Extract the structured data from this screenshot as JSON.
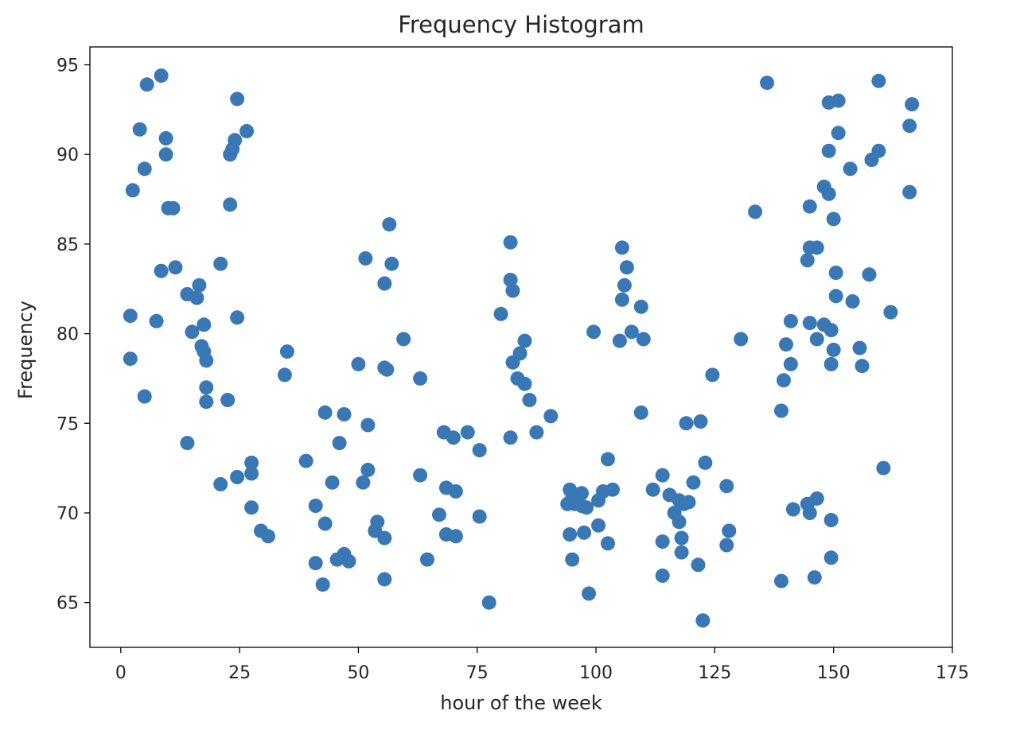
{
  "chart_data": {
    "type": "scatter",
    "title": "Frequency Histogram",
    "xlabel": "hour of the week",
    "ylabel": "Frequency",
    "xlim": [
      -6.5,
      175
    ],
    "ylim": [
      62.5,
      96
    ],
    "xticks": [
      0,
      25,
      50,
      75,
      100,
      125,
      150,
      175
    ],
    "yticks": [
      65,
      70,
      75,
      80,
      85,
      90,
      95
    ],
    "grid": false,
    "legend": "none",
    "marker_color": "#3a78b5",
    "series": [
      {
        "points": [
          [
            2,
            81
          ],
          [
            2,
            78.6
          ],
          [
            2.5,
            88
          ],
          [
            4,
            91.4
          ],
          [
            5,
            76.5
          ],
          [
            5,
            89.2
          ],
          [
            5.5,
            93.9
          ],
          [
            7.5,
            80.7
          ],
          [
            8.5,
            94.4
          ],
          [
            8.5,
            83.5
          ],
          [
            9.5,
            90
          ],
          [
            9.5,
            90.9
          ],
          [
            10,
            87
          ],
          [
            11,
            87
          ],
          [
            11.5,
            83.7
          ],
          [
            14,
            73.9
          ],
          [
            14,
            82.2
          ],
          [
            15,
            80.1
          ],
          [
            16,
            82
          ],
          [
            16.5,
            82.7
          ],
          [
            17,
            79.3
          ],
          [
            17.5,
            80.5
          ],
          [
            17.5,
            79
          ],
          [
            18,
            78.5
          ],
          [
            18,
            77
          ],
          [
            18,
            76.2
          ],
          [
            21,
            83.9
          ],
          [
            21,
            71.6
          ],
          [
            22.5,
            76.3
          ],
          [
            23,
            87.2
          ],
          [
            23,
            90
          ],
          [
            23.5,
            90.3
          ],
          [
            24,
            90.8
          ],
          [
            24.5,
            93.1
          ],
          [
            24.5,
            80.9
          ],
          [
            24.5,
            72
          ],
          [
            26.5,
            91.3
          ],
          [
            27.5,
            72.8
          ],
          [
            27.5,
            72.2
          ],
          [
            27.5,
            70.3
          ],
          [
            29.5,
            69
          ],
          [
            31,
            68.7
          ],
          [
            34.5,
            77.7
          ],
          [
            35,
            79
          ],
          [
            39,
            72.9
          ],
          [
            41,
            67.2
          ],
          [
            41,
            70.4
          ],
          [
            42.5,
            66
          ],
          [
            43,
            69.4
          ],
          [
            43,
            75.6
          ],
          [
            44.5,
            71.7
          ],
          [
            45.5,
            67.4
          ],
          [
            46,
            73.9
          ],
          [
            47,
            75.5
          ],
          [
            47,
            67.7
          ],
          [
            48,
            67.3
          ],
          [
            50,
            78.3
          ],
          [
            51,
            71.7
          ],
          [
            51.5,
            84.2
          ],
          [
            52,
            74.9
          ],
          [
            52,
            72.4
          ],
          [
            53.5,
            69
          ],
          [
            54,
            69.5
          ],
          [
            55.5,
            68.6
          ],
          [
            55.5,
            66.3
          ],
          [
            55.5,
            78.1
          ],
          [
            55.5,
            82.8
          ],
          [
            56,
            78
          ],
          [
            56.5,
            86.1
          ],
          [
            57,
            83.9
          ],
          [
            59.5,
            79.7
          ],
          [
            63,
            77.5
          ],
          [
            63,
            72.1
          ],
          [
            64.5,
            67.4
          ],
          [
            67,
            69.9
          ],
          [
            68,
            74.5
          ],
          [
            68.5,
            71.4
          ],
          [
            68.5,
            68.8
          ],
          [
            70,
            74.2
          ],
          [
            70.5,
            68.7
          ],
          [
            70.5,
            71.2
          ],
          [
            73,
            74.5
          ],
          [
            75.5,
            69.8
          ],
          [
            75.5,
            73.5
          ],
          [
            77.5,
            65
          ],
          [
            80,
            81.1
          ],
          [
            82,
            74.2
          ],
          [
            82,
            85.1
          ],
          [
            82,
            83
          ],
          [
            82.5,
            78.4
          ],
          [
            82.5,
            82.4
          ],
          [
            83.5,
            77.5
          ],
          [
            84,
            78.9
          ],
          [
            85,
            77.2
          ],
          [
            85,
            79.6
          ],
          [
            86,
            76.3
          ],
          [
            87.5,
            74.5
          ],
          [
            90.5,
            75.4
          ],
          [
            94,
            70.5
          ],
          [
            94.5,
            71.3
          ],
          [
            94.5,
            68.8
          ],
          [
            95,
            70.8
          ],
          [
            95,
            67.4
          ],
          [
            95.5,
            70.5
          ],
          [
            96.5,
            71
          ],
          [
            97,
            70.4
          ],
          [
            97,
            71.1
          ],
          [
            97.5,
            68.9
          ],
          [
            98,
            70.3
          ],
          [
            98.5,
            65.5
          ],
          [
            99.5,
            80.1
          ],
          [
            100.5,
            69.3
          ],
          [
            100.5,
            70.7
          ],
          [
            101.5,
            71.2
          ],
          [
            102.5,
            68.3
          ],
          [
            102.5,
            73
          ],
          [
            103.5,
            71.3
          ],
          [
            105,
            79.6
          ],
          [
            105.5,
            81.9
          ],
          [
            105.5,
            84.8
          ],
          [
            106,
            82.7
          ],
          [
            106.5,
            83.7
          ],
          [
            107.5,
            80.1
          ],
          [
            109.5,
            81.5
          ],
          [
            109.5,
            75.6
          ],
          [
            110,
            79.7
          ],
          [
            112,
            71.3
          ],
          [
            114,
            72.1
          ],
          [
            114,
            68.4
          ],
          [
            114,
            66.5
          ],
          [
            115.5,
            71
          ],
          [
            116.5,
            70
          ],
          [
            117.5,
            70.7
          ],
          [
            117.5,
            69.5
          ],
          [
            118,
            67.8
          ],
          [
            118,
            68.6
          ],
          [
            118.5,
            70.5
          ],
          [
            119,
            75
          ],
          [
            119.5,
            70.6
          ],
          [
            120.5,
            71.7
          ],
          [
            121.5,
            67.1
          ],
          [
            122,
            75.1
          ],
          [
            122.5,
            64
          ],
          [
            123,
            72.8
          ],
          [
            124.5,
            77.7
          ],
          [
            127.5,
            68.2
          ],
          [
            127.5,
            71.5
          ],
          [
            128,
            69
          ],
          [
            130.5,
            79.7
          ],
          [
            133.5,
            86.8
          ],
          [
            136,
            94
          ],
          [
            139,
            66.2
          ],
          [
            139,
            75.7
          ],
          [
            139.5,
            77.4
          ],
          [
            140,
            79.4
          ],
          [
            141,
            80.7
          ],
          [
            141,
            78.3
          ],
          [
            141.5,
            70.2
          ],
          [
            144.5,
            70.5
          ],
          [
            144.5,
            84.1
          ],
          [
            145,
            84.8
          ],
          [
            145,
            87.1
          ],
          [
            145,
            80.6
          ],
          [
            145,
            70
          ],
          [
            146,
            66.4
          ],
          [
            146.5,
            79.7
          ],
          [
            146.5,
            70.8
          ],
          [
            146.5,
            84.8
          ],
          [
            148,
            80.5
          ],
          [
            148,
            88.2
          ],
          [
            149,
            87.8
          ],
          [
            149,
            92.9
          ],
          [
            149,
            90.2
          ],
          [
            149.5,
            80.2
          ],
          [
            149.5,
            78.3
          ],
          [
            149.5,
            69.6
          ],
          [
            149.5,
            67.5
          ],
          [
            150,
            79.1
          ],
          [
            150,
            86.4
          ],
          [
            150.5,
            83.4
          ],
          [
            150.5,
            82.1
          ],
          [
            151,
            93
          ],
          [
            151,
            91.2
          ],
          [
            153.5,
            89.2
          ],
          [
            154,
            81.8
          ],
          [
            155.5,
            79.2
          ],
          [
            156,
            78.2
          ],
          [
            157.5,
            83.3
          ],
          [
            158,
            89.7
          ],
          [
            159.5,
            94.1
          ],
          [
            159.5,
            90.2
          ],
          [
            160.5,
            72.5
          ],
          [
            162,
            81.2
          ],
          [
            166,
            87.9
          ],
          [
            166,
            91.6
          ],
          [
            166.5,
            92.8
          ]
        ]
      }
    ]
  }
}
